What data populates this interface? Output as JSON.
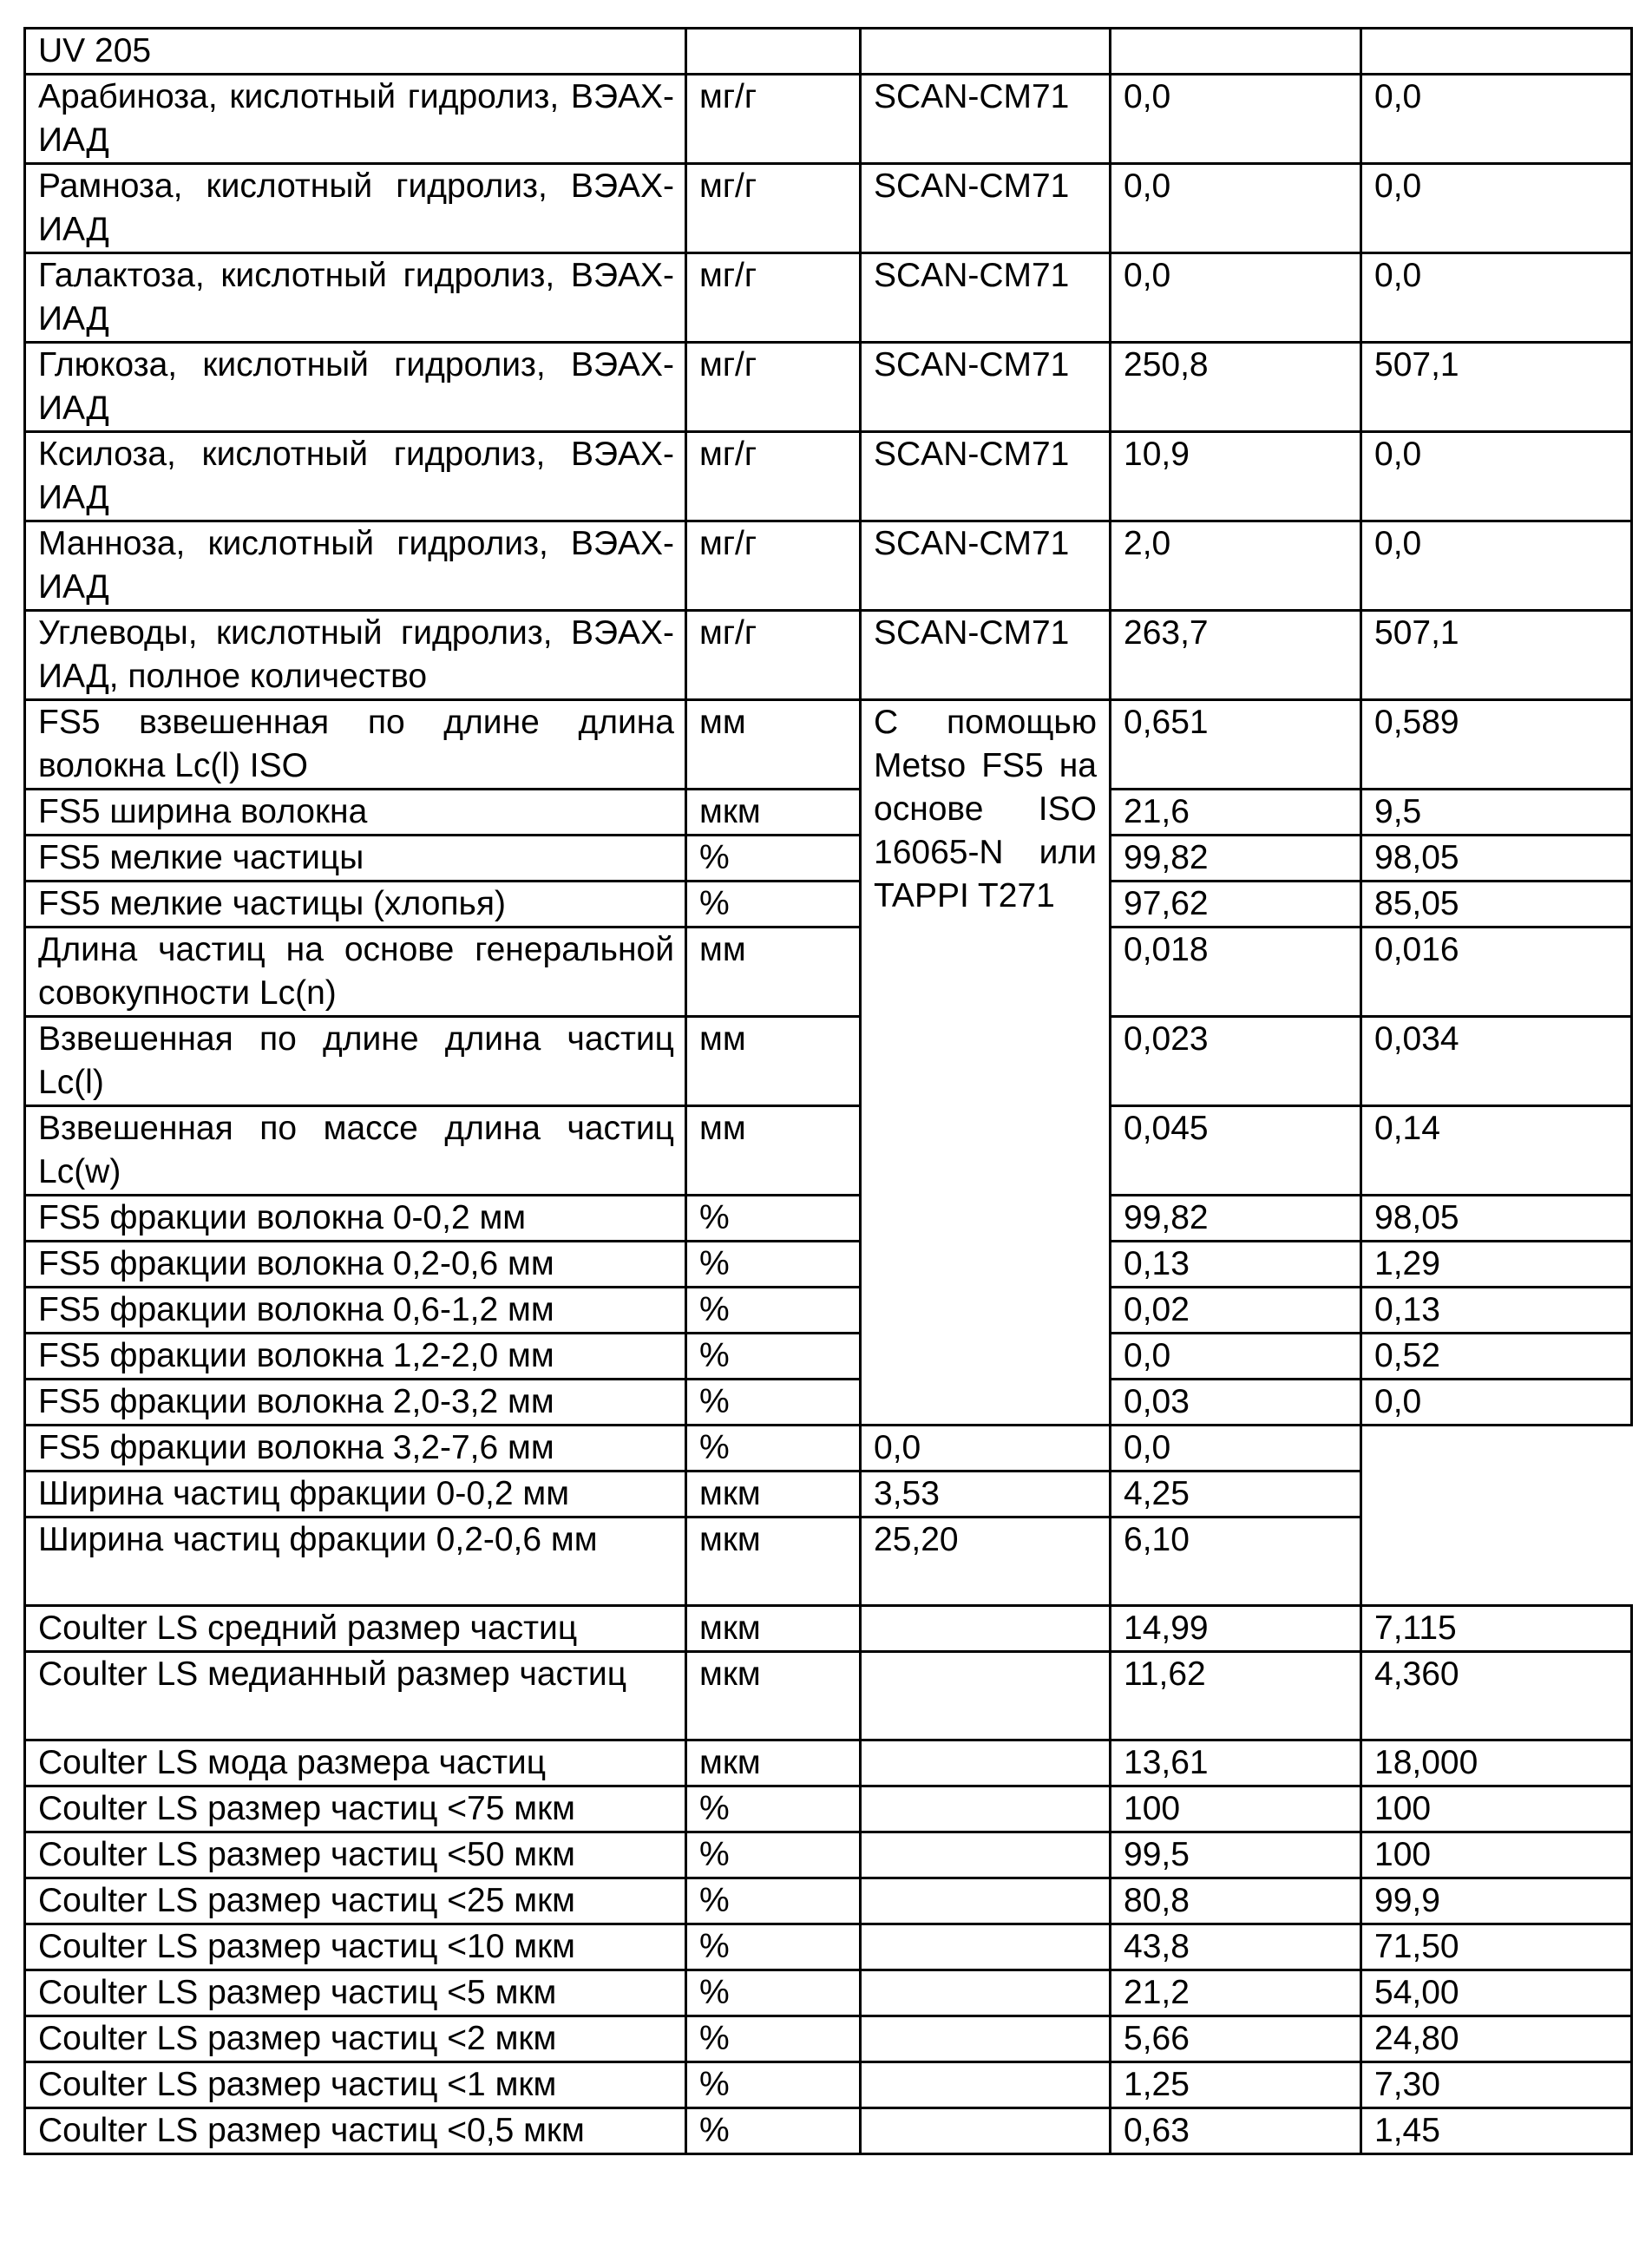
{
  "table": {
    "rows": [
      {
        "name": "UV 205",
        "unit": "",
        "method": "",
        "v1": "",
        "v2": ""
      },
      {
        "name": "Арабиноза, кислотный гидролиз, ВЭАХ-ИАД",
        "unit": "мг/г",
        "method": "SCAN-CM71",
        "v1": "0,0",
        "v2": "0,0"
      },
      {
        "name": "Рамноза, кислотный гидролиз, ВЭАХ-ИАД",
        "unit": "мг/г",
        "method": "SCAN-CM71",
        "v1": "0,0",
        "v2": "0,0"
      },
      {
        "name": "Галактоза, кислотный гидролиз, ВЭАХ-ИАД",
        "unit": "мг/г",
        "method": "SCAN-CM71",
        "v1": "0,0",
        "v2": "0,0"
      },
      {
        "name": "Глюкоза, кислотный гидролиз, ВЭАХ-ИАД",
        "unit": "мг/г",
        "method": "SCAN-CM71",
        "v1": "250,8",
        "v2": "507,1"
      },
      {
        "name": "Ксилоза, кислотный гидролиз, ВЭАХ-ИАД",
        "unit": "мг/г",
        "method": "SCAN-CM71",
        "v1": "10,9",
        "v2": "0,0"
      },
      {
        "name": "Манноза, кислотный гидролиз, ВЭАХ-ИАД",
        "unit": "мг/г",
        "method": "SCAN-CM71",
        "v1": "2,0",
        "v2": "0,0"
      },
      {
        "name": "Углеводы, кислотный гидролиз, ВЭАХ-ИАД, полное количество",
        "unit": "мг/г",
        "method": "SCAN-CM71",
        "v1": "263,7",
        "v2": "507,1"
      },
      {
        "name": "FS5 взвешенная по длине длина волокна Lc(l) ISO",
        "unit": "мм",
        "method": "С помощью Metso FS5 на основе ISO 16065-N или TAPPI T271",
        "method_rowspan": 12,
        "v1": "0,651",
        "v2": "0,589"
      },
      {
        "name": "FS5 ширина волокна",
        "unit": "мкм",
        "v1": "21,6",
        "v2": "9,5"
      },
      {
        "name": "FS5 мелкие частицы",
        "unit": "%",
        "v1": "99,82",
        "v2": "98,05"
      },
      {
        "name": "FS5 мелкие частицы (хлопья)",
        "unit": "%",
        "v1": "97,62",
        "v2": "85,05"
      },
      {
        "name": "Длина частиц на основе генеральной совокупности Lc(n)",
        "unit": "мм",
        "v1": "0,018",
        "v2": "0,016"
      },
      {
        "name": "Взвешенная по длине длина частиц Lc(l)",
        "unit": "мм",
        "v1": "0,023",
        "v2": "0,034"
      },
      {
        "name": "Взвешенная по массе длина частиц Lc(w)",
        "unit": "мм",
        "v1": "0,045",
        "v2": "0,14"
      },
      {
        "name": "FS5 фракции волокна 0-0,2 мм",
        "unit": "%",
        "v1": "99,82",
        "v2": "98,05"
      },
      {
        "name": "FS5 фракции волокна 0,2-0,6 мм",
        "unit": "%",
        "v1": "0,13",
        "v2": "1,29"
      },
      {
        "name": "FS5 фракции волокна 0,6-1,2 мм",
        "unit": "%",
        "v1": "0,02",
        "v2": "0,13"
      },
      {
        "name": "FS5 фракции волокна 1,2-2,0 мм",
        "unit": "%",
        "v1": "0,0",
        "v2": "0,52"
      },
      {
        "name": "FS5 фракции волокна 2,0-3,2 мм",
        "unit": "%",
        "v1": "0,03",
        "v2": "0,0"
      },
      {
        "name": "FS5 фракции волокна 3,2-7,6 мм",
        "unit": "%",
        "v1": "0,0",
        "v2": "0,0"
      },
      {
        "name": "Ширина частиц фракции 0-0,2 мм",
        "unit": "мкм",
        "v1": "3,53",
        "v2": "4,25"
      },
      {
        "name": "Ширина частиц фракции 0,2-0,6 мм",
        "unit": "мкм",
        "v1": "25,20",
        "v2": "6,10"
      },
      {
        "name": "Coulter LS средний размер частиц",
        "unit": "мкм",
        "method": "",
        "v1": "14,99",
        "v2": "7,115"
      },
      {
        "name": "Coulter LS медианный размер частиц",
        "unit": "мкм",
        "method": "",
        "v1": "11,62",
        "v2": "4,360"
      },
      {
        "name": "Coulter LS мода размера частиц",
        "unit": "мкм",
        "method": "",
        "v1": "13,61",
        "v2": "18,000"
      },
      {
        "name": "Coulter LS размер частиц <75 мкм",
        "unit": "%",
        "method": "",
        "v1": "100",
        "v2": "100"
      },
      {
        "name": "Coulter LS размер частиц <50 мкм",
        "unit": "%",
        "method": "",
        "v1": "99,5",
        "v2": "100"
      },
      {
        "name": "Coulter LS размер частиц <25 мкм",
        "unit": "%",
        "method": "",
        "v1": "80,8",
        "v2": "99,9"
      },
      {
        "name": "Coulter LS размер частиц <10 мкм",
        "unit": "%",
        "method": "",
        "v1": "43,8",
        "v2": "71,50"
      },
      {
        "name": "Coulter LS размер частиц <5 мкм",
        "unit": "%",
        "method": "",
        "v1": "21,2",
        "v2": "54,00"
      },
      {
        "name": "Coulter LS размер частиц <2 мкм",
        "unit": "%",
        "method": "",
        "v1": "5,66",
        "v2": "24,80"
      },
      {
        "name": "Coulter LS размер частиц <1 мкм",
        "unit": "%",
        "method": "",
        "v1": "1,25",
        "v2": "7,30"
      },
      {
        "name": "Coulter LS размер частиц <0,5 мкм",
        "unit": "%",
        "method": "",
        "v1": "0,63",
        "v2": "1,45"
      }
    ]
  }
}
